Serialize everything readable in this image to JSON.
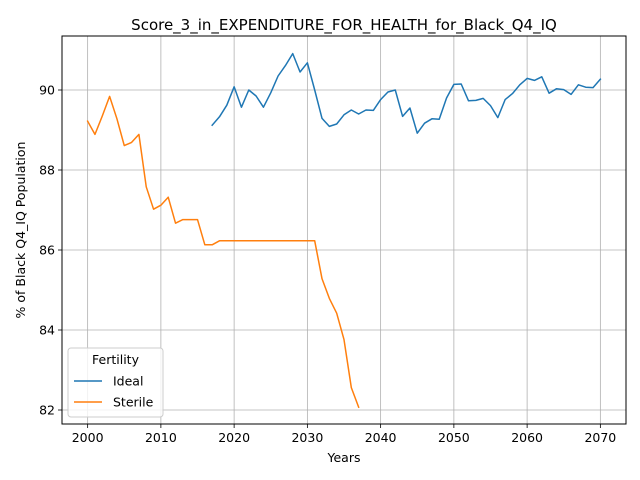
{
  "chart_data": {
    "type": "line",
    "title": "Score_3_in_EXPENDITURE_FOR_HEALTH_for_Black_Q4_IQ",
    "xlabel": "Years",
    "ylabel": "% of Black Q4_IQ Population",
    "xlim": [
      1996.5,
      2073.5
    ],
    "ylim": [
      81.65,
      91.35
    ],
    "xticks": [
      2000,
      2010,
      2020,
      2030,
      2040,
      2050,
      2060,
      2070
    ],
    "yticks": [
      82,
      84,
      86,
      88,
      90
    ],
    "grid": true,
    "legend": {
      "title": "Fertility",
      "placement": "lower-left"
    },
    "series": [
      {
        "name": "Ideal",
        "color": "#1f77b4",
        "x": [
          2017,
          2018,
          2019,
          2020,
          2021,
          2022,
          2023,
          2024,
          2025,
          2026,
          2027,
          2028,
          2029,
          2030,
          2031,
          2032,
          2033,
          2034,
          2035,
          2036,
          2037,
          2038,
          2039,
          2040,
          2041,
          2042,
          2043,
          2044,
          2045,
          2046,
          2047,
          2048,
          2049,
          2050,
          2051,
          2052,
          2053,
          2054,
          2055,
          2056,
          2057,
          2058,
          2059,
          2060,
          2061,
          2062,
          2063,
          2064,
          2065,
          2066,
          2067,
          2068,
          2069,
          2070
        ],
        "y": [
          89.12,
          89.33,
          89.62,
          90.08,
          89.57,
          90.0,
          89.85,
          89.57,
          89.93,
          90.35,
          90.61,
          90.91,
          90.45,
          90.68,
          90.0,
          89.29,
          89.09,
          89.15,
          89.38,
          89.5,
          89.4,
          89.5,
          89.49,
          89.76,
          89.95,
          90.0,
          89.34,
          89.55,
          88.92,
          89.17,
          89.28,
          89.27,
          89.8,
          90.14,
          90.15,
          89.73,
          89.74,
          89.79,
          89.61,
          89.31,
          89.76,
          89.91,
          90.13,
          90.29,
          90.24,
          90.33,
          89.92,
          90.03,
          90.01,
          89.89,
          90.13,
          90.07,
          90.06,
          90.27
        ]
      },
      {
        "name": "Sterile",
        "color": "#ff7f0e",
        "x": [
          2000,
          2001,
          2002,
          2003,
          2004,
          2005,
          2006,
          2007,
          2008,
          2009,
          2010,
          2011,
          2012,
          2013,
          2014,
          2015,
          2016,
          2017,
          2018,
          2019,
          2020,
          2021,
          2022,
          2023,
          2024,
          2025,
          2026,
          2027,
          2028,
          2029,
          2030,
          2031,
          2032,
          2033,
          2034,
          2035,
          2036,
          2037
        ],
        "y": [
          89.22,
          88.89,
          89.35,
          89.84,
          89.28,
          88.61,
          88.69,
          88.89,
          87.58,
          87.02,
          87.12,
          87.32,
          86.67,
          86.76,
          86.76,
          86.76,
          86.13,
          86.13,
          86.23,
          86.23,
          86.23,
          86.23,
          86.23,
          86.23,
          86.23,
          86.23,
          86.23,
          86.23,
          86.23,
          86.23,
          86.23,
          86.23,
          85.28,
          84.79,
          84.42,
          83.76,
          82.56,
          82.07
        ]
      }
    ]
  }
}
